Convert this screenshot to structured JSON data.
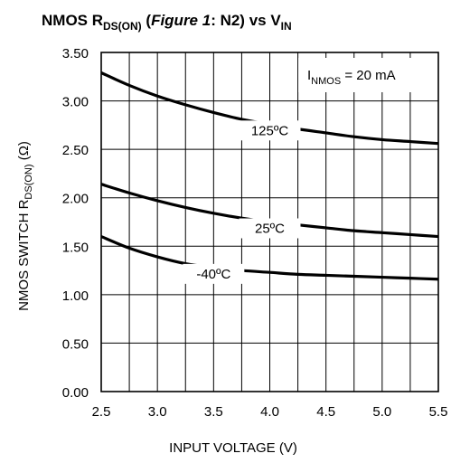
{
  "chart_data": {
    "type": "line",
    "title": {
      "prefix": "NMOS R",
      "prefix_sub": "DS(ON)",
      "paren_open": " (",
      "figure_ref": "Figure 1",
      "figure_rest": ": N2) vs V",
      "vin_sub": "IN"
    },
    "ylabel": {
      "main": "NMOS SWITCH R",
      "sub": "DS(ON)",
      "unit": " (Ω)"
    },
    "xlabel": "INPUT VOLTAGE (V)",
    "annotation": {
      "main": "I",
      "sub": "NMOS",
      "value": " = 20 mA"
    },
    "xlim": [
      2.5,
      5.5
    ],
    "ylim": [
      0.0,
      3.5
    ],
    "x_ticks": [
      "2.5",
      "3.0",
      "3.5",
      "4.0",
      "4.5",
      "5.0",
      "5.5"
    ],
    "y_ticks": [
      "0.00",
      "0.50",
      "1.00",
      "1.50",
      "2.00",
      "2.50",
      "3.00",
      "3.50"
    ],
    "x_ticks_values": [
      2.5,
      3.0,
      3.5,
      4.0,
      4.5,
      5.0,
      5.5
    ],
    "y_ticks_values": [
      0.0,
      0.5,
      1.0,
      1.5,
      2.0,
      2.5,
      3.0,
      3.5
    ],
    "x_minor_grid": [
      2.75,
      3.25,
      3.75,
      4.25,
      4.75,
      5.25
    ],
    "grid": true,
    "series": [
      {
        "name": "125ºC",
        "x": [
          2.5,
          2.75,
          3.0,
          3.25,
          3.5,
          3.75,
          4.0,
          4.25,
          4.5,
          4.75,
          5.0,
          5.25,
          5.5
        ],
        "y": [
          3.29,
          3.16,
          3.05,
          2.96,
          2.88,
          2.81,
          2.76,
          2.71,
          2.67,
          2.63,
          2.6,
          2.58,
          2.56
        ],
        "label_x": 4.0
      },
      {
        "name": "25ºC",
        "x": [
          2.5,
          2.75,
          3.0,
          3.25,
          3.5,
          3.75,
          4.0,
          4.25,
          4.5,
          4.75,
          5.0,
          5.25,
          5.5
        ],
        "y": [
          2.14,
          2.05,
          1.97,
          1.9,
          1.84,
          1.79,
          1.75,
          1.72,
          1.69,
          1.66,
          1.64,
          1.62,
          1.6
        ],
        "label_x": 4.0
      },
      {
        "name": "-40ºC",
        "x": [
          2.5,
          2.75,
          3.0,
          3.25,
          3.5,
          3.75,
          4.0,
          4.25,
          4.5,
          4.75,
          5.0,
          5.25,
          5.5
        ],
        "y": [
          1.6,
          1.48,
          1.39,
          1.32,
          1.28,
          1.25,
          1.23,
          1.21,
          1.2,
          1.19,
          1.18,
          1.17,
          1.16
        ],
        "label_x": 3.5
      }
    ]
  }
}
